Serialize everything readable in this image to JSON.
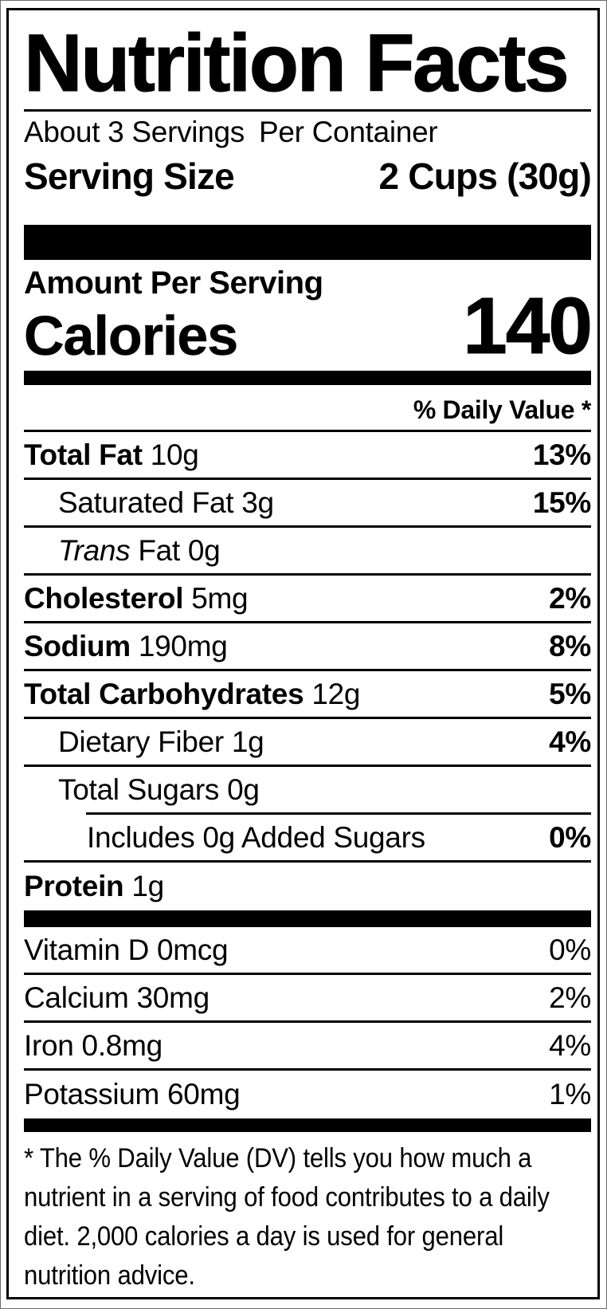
{
  "header": {
    "title": "Nutrition Facts",
    "servings_per_container": "About 3 Servings",
    "servings_suffix": "Per Container",
    "serving_size_label": "Serving Size",
    "serving_size_value": "2 Cups (30g)"
  },
  "calories_section": {
    "amount_per_serving_label": "Amount Per Serving",
    "calories_label": "Calories",
    "calories_value": "140"
  },
  "daily_value_header": "% Daily Value *",
  "nutrients": [
    {
      "name": "Total Fat",
      "amount": "10g",
      "percent": "13%",
      "indent": 0,
      "bold_name": true,
      "bold_percent": true,
      "divider": "full"
    },
    {
      "name": "Saturated Fat",
      "amount": "3g",
      "percent": "15%",
      "indent": 1,
      "bold_name": false,
      "bold_percent": true,
      "divider": "full"
    },
    {
      "name_italic": "Trans",
      "name": "Fat",
      "amount": "0g",
      "percent": "",
      "indent": 1,
      "bold_name": false,
      "bold_percent": false,
      "divider": "full"
    },
    {
      "name": "Cholesterol",
      "amount": "5mg",
      "percent": "2%",
      "indent": 0,
      "bold_name": true,
      "bold_percent": true,
      "divider": "full"
    },
    {
      "name": "Sodium",
      "amount": "190mg",
      "percent": "8%",
      "indent": 0,
      "bold_name": true,
      "bold_percent": true,
      "divider": "full"
    },
    {
      "name": "Total Carbohydrates",
      "amount": "12g",
      "percent": "5%",
      "indent": 0,
      "bold_name": true,
      "bold_percent": true,
      "divider": "full"
    },
    {
      "name": "Dietary Fiber",
      "amount": "1g",
      "percent": "4%",
      "indent": 1,
      "bold_name": false,
      "bold_percent": true,
      "divider": "full"
    },
    {
      "name": "Total Sugars",
      "amount": "0g",
      "percent": "",
      "indent": 1,
      "bold_name": false,
      "bold_percent": false,
      "divider": "partial"
    },
    {
      "name": "Includes 0g Added Sugars",
      "amount": "",
      "percent": "0%",
      "indent": 2,
      "bold_name": false,
      "bold_percent": true,
      "divider": "full"
    },
    {
      "name": "Protein",
      "amount": "1g",
      "percent": "",
      "indent": 0,
      "bold_name": true,
      "bold_percent": false,
      "divider": "none"
    }
  ],
  "micronutrients": [
    {
      "name": "Vitamin D",
      "amount": "0mcg",
      "percent": "0%",
      "indent": 0,
      "bold_name": false,
      "bold_percent": false,
      "divider": "full"
    },
    {
      "name": "Calcium",
      "amount": "30mg",
      "percent": "2%",
      "indent": 0,
      "bold_name": false,
      "bold_percent": false,
      "divider": "full"
    },
    {
      "name": "Iron",
      "amount": "0.8mg",
      "percent": "4%",
      "indent": 0,
      "bold_name": false,
      "bold_percent": false,
      "divider": "full"
    },
    {
      "name": "Potassium",
      "amount": "60mg",
      "percent": "1%",
      "indent": 0,
      "bold_name": false,
      "bold_percent": false,
      "divider": "none"
    }
  ],
  "footnote": "* The % Daily Value (DV) tells you how much a nutrient in a serving of food contributes to a daily diet. 2,000 calories a day is used for general nutrition advice.",
  "colors": {
    "ink": "#000000",
    "paper": "#ffffff"
  }
}
